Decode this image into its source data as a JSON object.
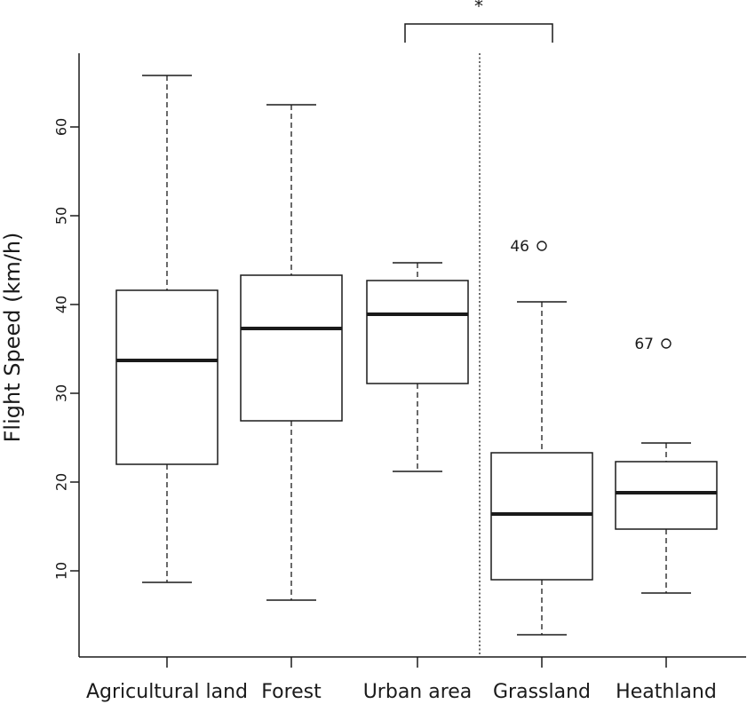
{
  "chart_data": {
    "type": "boxplot",
    "title": "",
    "xlabel": "",
    "ylabel": "Flight Speed (km/h)",
    "ylim": [
      0,
      69
    ],
    "yticks": [
      10,
      20,
      30,
      40,
      50,
      60
    ],
    "grid": false,
    "categories": [
      "Agricultural land",
      "Forest",
      "Urban area",
      "Grassland",
      "Heathland"
    ],
    "boxes": [
      {
        "category": "Agricultural land",
        "whisker_low": 8.7,
        "q1": 22.0,
        "median": 33.7,
        "q3": 41.6,
        "whisker_high": 65.8,
        "outliers": []
      },
      {
        "category": "Forest",
        "whisker_low": 6.7,
        "q1": 26.9,
        "median": 37.3,
        "q3": 43.3,
        "whisker_high": 62.5,
        "outliers": []
      },
      {
        "category": "Urban area",
        "whisker_low": 21.2,
        "q1": 31.1,
        "median": 38.9,
        "q3": 42.7,
        "whisker_high": 44.7,
        "outliers": []
      },
      {
        "category": "Grassland",
        "whisker_low": 2.8,
        "q1": 9.0,
        "median": 16.4,
        "q3": 23.3,
        "whisker_high": 40.3,
        "outliers": [
          {
            "value": 46.6,
            "label": "46"
          }
        ]
      },
      {
        "category": "Heathland",
        "whisker_low": 7.5,
        "q1": 14.7,
        "median": 18.8,
        "q3": 22.3,
        "whisker_high": 24.4,
        "outliers": [
          {
            "value": 35.6,
            "label": "67"
          }
        ]
      }
    ],
    "separator_after": "Urban area",
    "significance": {
      "from": "Urban area",
      "to": "Grassland",
      "label": "*"
    }
  }
}
